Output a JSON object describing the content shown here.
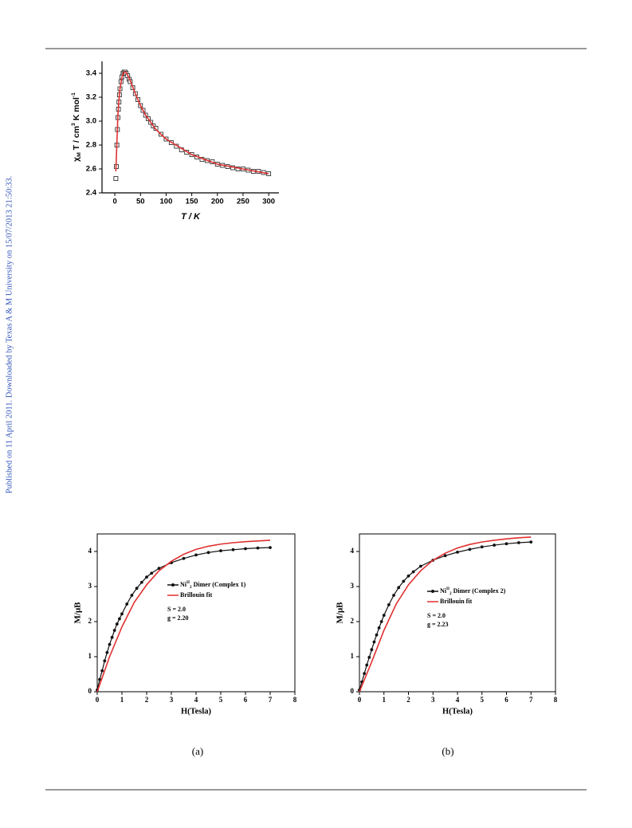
{
  "sidebar": "Published on 11 April 2011. Downloaded by Texas A & M University on 15/07/2013 21:50:33.",
  "chart_data": [
    {
      "type": "scatter",
      "x_label": "T / K",
      "y_label_parts": [
        "χ",
        "M",
        " T / cm",
        "3",
        " K mol",
        "-1"
      ],
      "xlim": [
        -25,
        320
      ],
      "ylim": [
        2.4,
        3.5
      ],
      "xticks": [
        0,
        50,
        100,
        150,
        200,
        250,
        300
      ],
      "yticks": [
        2.4,
        2.6,
        2.8,
        3.0,
        3.2,
        3.4
      ],
      "series": [
        {
          "mode": "markers",
          "marker": "square",
          "color": "#333333",
          "x": [
            2,
            3,
            4,
            5,
            6,
            7,
            8,
            9,
            10,
            12,
            14,
            16,
            18,
            20,
            22,
            25,
            28,
            30,
            35,
            40,
            45,
            50,
            55,
            60,
            65,
            70,
            75,
            80,
            90,
            100,
            110,
            120,
            130,
            140,
            150,
            160,
            170,
            180,
            190,
            200,
            210,
            220,
            230,
            240,
            250,
            260,
            270,
            280,
            290,
            300
          ],
          "values": [
            2.52,
            2.62,
            2.8,
            2.93,
            3.03,
            3.1,
            3.16,
            3.22,
            3.27,
            3.33,
            3.37,
            3.4,
            3.41,
            3.41,
            3.4,
            3.38,
            3.35,
            3.33,
            3.28,
            3.23,
            3.18,
            3.13,
            3.09,
            3.05,
            3.02,
            2.99,
            2.96,
            2.94,
            2.89,
            2.85,
            2.82,
            2.79,
            2.76,
            2.74,
            2.72,
            2.7,
            2.68,
            2.67,
            2.66,
            2.64,
            2.63,
            2.62,
            2.61,
            2.6,
            2.6,
            2.59,
            2.58,
            2.58,
            2.57,
            2.56
          ]
        },
        {
          "mode": "line",
          "color": "#e03030",
          "x": [
            2,
            4,
            6,
            8,
            10,
            14,
            18,
            22,
            30,
            40,
            50,
            60,
            80,
            100,
            150,
            200,
            250,
            300
          ],
          "values": [
            2.58,
            2.82,
            3.05,
            3.18,
            3.27,
            3.37,
            3.41,
            3.41,
            3.34,
            3.23,
            3.13,
            3.05,
            2.93,
            2.85,
            2.72,
            2.64,
            2.6,
            2.56
          ]
        }
      ]
    },
    {
      "type": "scatter",
      "x_label": "H(Tesla)",
      "y_label": "M/μB",
      "caption": "(a)",
      "xlim": [
        0,
        8
      ],
      "ylim": [
        0,
        4.5
      ],
      "xticks": [
        0,
        1,
        2,
        3,
        4,
        5,
        6,
        7,
        8
      ],
      "yticks": [
        0,
        1,
        2,
        3,
        4
      ],
      "annotations": [
        "S = 2.0",
        "g = 2.20"
      ],
      "series": [
        {
          "mode": "lines+markers",
          "marker": "circle",
          "color": "#111111",
          "name_parts": [
            "Ni",
            "II",
            "2",
            " Dimer (Complex 1)"
          ],
          "x": [
            0,
            0.1,
            0.2,
            0.3,
            0.4,
            0.5,
            0.6,
            0.7,
            0.8,
            0.9,
            1.0,
            1.2,
            1.4,
            1.6,
            1.8,
            2.0,
            2.2,
            2.5,
            3,
            3.5,
            4,
            4.5,
            5,
            5.5,
            6,
            6.5,
            7
          ],
          "values": [
            0.05,
            0.35,
            0.6,
            0.88,
            1.12,
            1.35,
            1.55,
            1.75,
            1.93,
            2.08,
            2.22,
            2.5,
            2.75,
            2.95,
            3.12,
            3.27,
            3.38,
            3.52,
            3.68,
            3.8,
            3.9,
            3.97,
            4.02,
            4.05,
            4.08,
            4.1,
            4.11
          ]
        },
        {
          "mode": "line",
          "color": "#e03030",
          "name": "Brillouin fit",
          "x": [
            0,
            0.5,
            1,
            1.5,
            2,
            2.5,
            3,
            3.5,
            4,
            4.5,
            5,
            5.5,
            6,
            6.5,
            7
          ],
          "values": [
            0,
            1.0,
            1.85,
            2.55,
            3.05,
            3.45,
            3.72,
            3.92,
            4.06,
            4.15,
            4.21,
            4.25,
            4.28,
            4.3,
            4.32
          ]
        }
      ]
    },
    {
      "type": "scatter",
      "x_label": "H(Tesla)",
      "y_label": "M/μB",
      "caption": "(b)",
      "xlim": [
        0,
        8
      ],
      "ylim": [
        0,
        4.5
      ],
      "xticks": [
        0,
        1,
        2,
        3,
        4,
        5,
        6,
        7,
        8
      ],
      "yticks": [
        0,
        1,
        2,
        3,
        4
      ],
      "annotations": [
        "S = 2.0",
        "g = 2.23"
      ],
      "series": [
        {
          "mode": "lines+markers",
          "marker": "circle",
          "color": "#111111",
          "name_parts": [
            "Ni",
            "II",
            "2",
            " Dimer (Complex 2)"
          ],
          "x": [
            0,
            0.1,
            0.2,
            0.3,
            0.4,
            0.5,
            0.6,
            0.7,
            0.8,
            0.9,
            1.0,
            1.2,
            1.4,
            1.6,
            1.8,
            2.0,
            2.2,
            2.5,
            3,
            3.5,
            4,
            4.5,
            5,
            5.5,
            6,
            6.5,
            7
          ],
          "values": [
            0.05,
            0.28,
            0.52,
            0.76,
            0.98,
            1.2,
            1.42,
            1.62,
            1.82,
            2.0,
            2.18,
            2.48,
            2.75,
            2.97,
            3.15,
            3.3,
            3.42,
            3.58,
            3.75,
            3.88,
            3.98,
            4.06,
            4.13,
            4.18,
            4.22,
            4.25,
            4.27
          ]
        },
        {
          "mode": "line",
          "color": "#e03030",
          "name": "Brillouin fit",
          "x": [
            0,
            0.5,
            1,
            1.5,
            2,
            2.5,
            3,
            3.5,
            4,
            4.5,
            5,
            5.5,
            6,
            6.5,
            7
          ],
          "values": [
            0,
            0.85,
            1.75,
            2.5,
            3.05,
            3.45,
            3.75,
            3.95,
            4.1,
            4.2,
            4.27,
            4.32,
            4.36,
            4.39,
            4.41
          ]
        }
      ]
    }
  ]
}
